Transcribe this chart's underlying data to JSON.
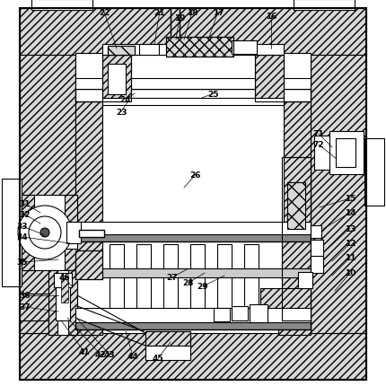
{
  "bg": "#ffffff",
  "fig_w": 4.3,
  "fig_h": 4.31,
  "dpi": 100,
  "outer_hatch": "////",
  "label_items": [
    [
      "10",
      390,
      305,
      373,
      325
    ],
    [
      "11",
      390,
      288,
      370,
      308
    ],
    [
      "12",
      390,
      272,
      370,
      292
    ],
    [
      "13",
      390,
      255,
      365,
      278
    ],
    [
      "14",
      390,
      238,
      360,
      256
    ],
    [
      "15",
      390,
      222,
      356,
      232
    ],
    [
      "16",
      302,
      18,
      302,
      55
    ],
    [
      "17",
      243,
      14,
      232,
      45
    ],
    [
      "18",
      214,
      14,
      205,
      45
    ],
    [
      "19",
      200,
      20,
      196,
      45
    ],
    [
      "21",
      178,
      14,
      172,
      50
    ],
    [
      "22",
      116,
      14,
      130,
      55
    ],
    [
      "23",
      135,
      125,
      142,
      115
    ],
    [
      "24",
      140,
      112,
      150,
      105
    ],
    [
      "25",
      238,
      105,
      225,
      110
    ],
    [
      "26",
      218,
      195,
      205,
      210
    ],
    [
      "27",
      192,
      310,
      210,
      300
    ],
    [
      "28",
      210,
      316,
      228,
      305
    ],
    [
      "29",
      226,
      320,
      250,
      308
    ],
    [
      "31",
      28,
      228,
      45,
      238
    ],
    [
      "32",
      28,
      240,
      45,
      250
    ],
    [
      "33",
      25,
      253,
      50,
      263
    ],
    [
      "34",
      25,
      265,
      78,
      272
    ],
    [
      "35",
      25,
      293,
      65,
      290
    ],
    [
      "36",
      28,
      330,
      65,
      330
    ],
    [
      "37",
      28,
      343,
      65,
      348
    ],
    [
      "41",
      94,
      393,
      68,
      358
    ],
    [
      "42",
      112,
      396,
      75,
      355
    ],
    [
      "43",
      122,
      396,
      85,
      355
    ],
    [
      "44",
      148,
      398,
      140,
      370
    ],
    [
      "45",
      176,
      400,
      190,
      382
    ],
    [
      "46",
      72,
      310,
      80,
      320
    ],
    [
      "71",
      355,
      150,
      370,
      165
    ],
    [
      "72",
      355,
      162,
      375,
      178
    ]
  ]
}
